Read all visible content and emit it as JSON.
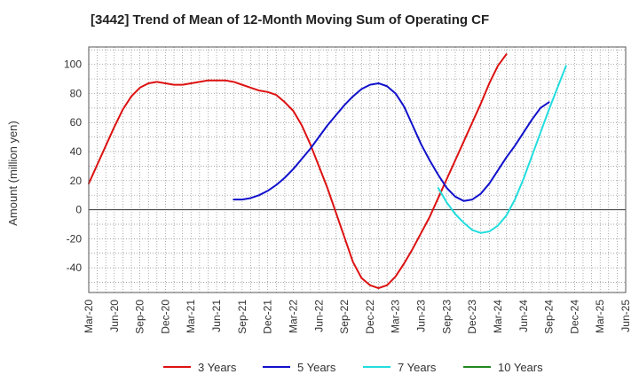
{
  "chart_data": {
    "type": "line",
    "title": "[3442]  Trend of Mean of 12-Month Moving Sum of Operating CF",
    "xlabel": "",
    "ylabel": "Amount (million yen)",
    "x_tick_labels": [
      "Mar-20",
      "Jun-20",
      "Sep-20",
      "Dec-20",
      "Mar-21",
      "Jun-21",
      "Sep-21",
      "Dec-21",
      "Mar-22",
      "Jun-22",
      "Sep-22",
      "Dec-22",
      "Mar-23",
      "Jun-23",
      "Sep-23",
      "Dec-23",
      "Mar-24",
      "Jun-24",
      "Sep-24",
      "Dec-24",
      "Mar-25",
      "Jun-25"
    ],
    "y_ticks": [
      -40,
      -20,
      0,
      20,
      40,
      60,
      80,
      100
    ],
    "y_tick_labels": [
      "-40",
      "-20",
      "0",
      "20",
      "40",
      "60",
      "80",
      "100"
    ],
    "ylim": [
      -57,
      112
    ],
    "grid": true,
    "legend_position": "bottom",
    "series": [
      {
        "name": "3 Years",
        "color": "#dd1111",
        "start_index": 0,
        "values": [
          18,
          31,
          44,
          57,
          69,
          78,
          84,
          87,
          88,
          87,
          86,
          86,
          87,
          88,
          89,
          89,
          89,
          88,
          86,
          84,
          82,
          81,
          79,
          74,
          68,
          58,
          45,
          30,
          15,
          -2,
          -19,
          -36,
          -47,
          -52,
          -54,
          -52,
          -46,
          -37,
          -27,
          -16,
          -5,
          8,
          21,
          34,
          47,
          60,
          73,
          87,
          99,
          107
        ]
      },
      {
        "name": "5 Years",
        "color": "#1111cc",
        "start_index": 17,
        "values": [
          7,
          7,
          8,
          10,
          13,
          17,
          22,
          28,
          35,
          42,
          50,
          58,
          65,
          72,
          78,
          83,
          86,
          87,
          85,
          80,
          71,
          58,
          45,
          34,
          24,
          15,
          9,
          6,
          7,
          11,
          18,
          27,
          36,
          44,
          53,
          62,
          70,
          74
        ]
      },
      {
        "name": "7 Years",
        "color": "#22dddd",
        "start_index": 41,
        "values": [
          15,
          5,
          -3,
          -9,
          -14,
          -16,
          -15,
          -11,
          -4,
          7,
          21,
          37,
          53,
          69,
          84,
          99
        ]
      },
      {
        "name": "10 Years",
        "color": "#228822",
        "start_index": 0,
        "values": []
      }
    ]
  }
}
